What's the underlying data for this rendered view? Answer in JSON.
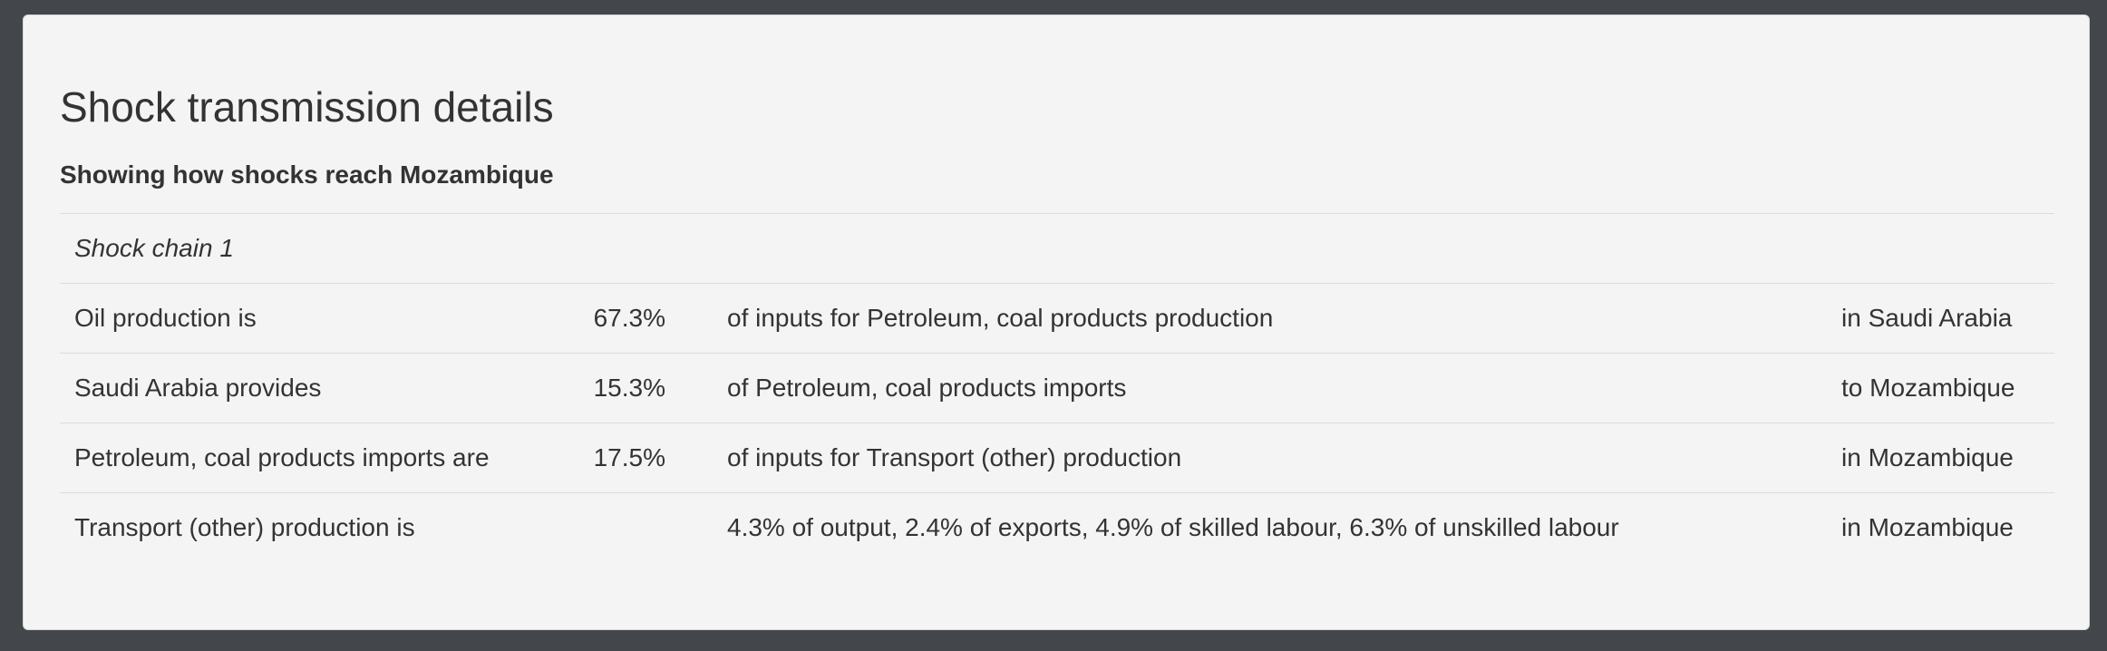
{
  "panel": {
    "title": "Shock transmission details",
    "subtitle": "Showing how shocks reach Mozambique"
  },
  "shock_chain": {
    "label": "Shock chain 1",
    "rows": [
      {
        "subject": "Oil production is",
        "share": "67.3%",
        "description": "of inputs for Petroleum, coal products production",
        "location": "in Saudi Arabia"
      },
      {
        "subject": "Saudi Arabia provides",
        "share": "15.3%",
        "description": "of Petroleum, coal products imports",
        "location": "to Mozambique"
      },
      {
        "subject": "Petroleum, coal products imports are",
        "share": "17.5%",
        "description": "of inputs for Transport (other) production",
        "location": "in Mozambique"
      },
      {
        "subject": "Transport (other) production is",
        "share": "",
        "description": "4.3% of output, 2.4% of exports, 4.9% of skilled labour, 6.3% of unskilled labour",
        "location": "in Mozambique"
      }
    ]
  }
}
